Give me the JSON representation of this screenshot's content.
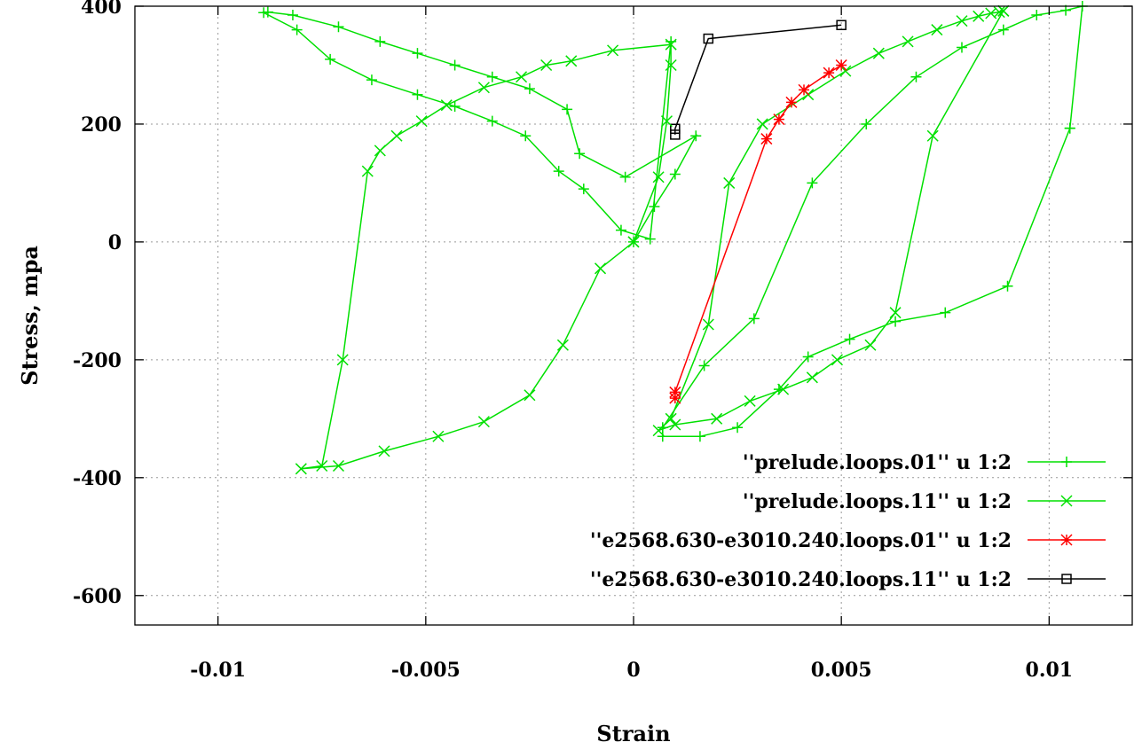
{
  "chart_data": {
    "type": "line",
    "xlabel": "Strain",
    "ylabel": "Stress, mpa",
    "xlim": [
      -0.012,
      0.012
    ],
    "ylim": [
      -650,
      400
    ],
    "xticks": [
      -0.01,
      -0.005,
      0,
      0.005,
      0.01
    ],
    "xtick_labels": [
      "-0.01",
      "-0.005",
      "0",
      "0.005",
      "0.01"
    ],
    "yticks": [
      -600,
      -400,
      -200,
      0,
      200,
      400
    ],
    "ytick_labels": [
      "-600",
      "-400",
      "-200",
      "0",
      "200",
      "400"
    ],
    "grid": true,
    "legend_position": "bottom-right",
    "series": [
      {
        "name": "''prelude.loops.01''  u 1:2",
        "color": "#00e000",
        "marker": "plus",
        "x": [
          0.0105,
          0.009,
          0.0075,
          0.0063,
          0.0052,
          0.0042,
          0.0035,
          0.0025,
          0.0016,
          0.0007,
          0.0007,
          0.0017,
          0.0029,
          0.0043,
          0.0056,
          0.0068,
          0.0079,
          0.0089,
          0.0097,
          0.0104,
          0.0108,
          0.0105
        ],
        "y": [
          193,
          -75,
          -120,
          -135,
          -165,
          -195,
          -250,
          -315,
          -330,
          -330,
          -315,
          -210,
          -130,
          100,
          200,
          280,
          330,
          360,
          385,
          393,
          400,
          193
        ]
      },
      {
        "name": "''prelude.loops.11''  u 1:2",
        "color": "#00e000",
        "marker": "x",
        "x": [
          0.0089,
          0.0072,
          0.0063,
          0.0057,
          0.0049,
          0.0043,
          0.0036,
          0.0028,
          0.002,
          0.001,
          0.0006,
          0.0009,
          0.0018,
          0.0023,
          0.0031,
          0.0042,
          0.0051,
          0.0059,
          0.0066,
          0.0073,
          0.0079,
          0.0083,
          0.0086,
          0.0088,
          0.0089
        ],
        "y": [
          392,
          180,
          -120,
          -175,
          -200,
          -230,
          -250,
          -270,
          -300,
          -310,
          -320,
          -300,
          -140,
          100,
          200,
          250,
          290,
          320,
          340,
          360,
          375,
          383,
          388,
          390,
          392
        ]
      },
      {
        "name": "''e2568.630-e3010.240.loops.01''  u 1:2",
        "color": "#ff0000",
        "marker": "star",
        "x": [
          0.001,
          0.001,
          0.0032,
          0.0035,
          0.0038,
          0.0041,
          0.0047,
          0.005
        ],
        "y": [
          -265,
          -255,
          175,
          208,
          237,
          258,
          287,
          300
        ]
      },
      {
        "name": "''e2568.630-e3010.240.loops.11''  u 1:2",
        "color": "#000000",
        "marker": "square",
        "x": [
          0.001,
          0.001,
          0.0018,
          0.005
        ],
        "y": [
          182,
          192,
          345,
          368
        ]
      },
      {
        "name": "",
        "color": "#00e000",
        "marker": "plus",
        "x": [
          0.0,
          0.0005,
          0.001,
          0.0015,
          -0.0002,
          -0.0013,
          -0.0016,
          -0.0025,
          -0.0034,
          -0.0043,
          -0.0052,
          -0.0061,
          -0.0071,
          -0.0082,
          -0.0088,
          -0.0089,
          -0.0081,
          -0.0073,
          -0.0063,
          -0.0052,
          -0.0043,
          -0.0034,
          -0.0026,
          -0.0018,
          -0.0012,
          -0.0003,
          0.0004,
          0.0009
        ],
        "y": [
          0,
          60,
          115,
          180,
          110,
          150,
          225,
          260,
          280,
          300,
          320,
          340,
          365,
          385,
          390,
          389,
          360,
          310,
          275,
          250,
          230,
          205,
          180,
          120,
          90,
          20,
          5,
          340
        ]
      },
      {
        "name": "",
        "color": "#00e000",
        "marker": "x",
        "x": [
          0.0,
          0.0006,
          0.0008,
          0.0009,
          0.0009,
          -0.0005,
          -0.0015,
          -0.0021,
          -0.0027,
          -0.0036,
          -0.0045,
          -0.0051,
          -0.0057,
          -0.0061,
          -0.0064,
          -0.007,
          -0.0075,
          -0.008,
          -0.0071,
          -0.006,
          -0.0047,
          -0.0036,
          -0.0025,
          -0.0017,
          -0.0008,
          0.0
        ],
        "y": [
          0,
          110,
          205,
          300,
          335,
          325,
          307,
          300,
          280,
          262,
          232,
          205,
          180,
          155,
          120,
          -200,
          -380,
          -385,
          -380,
          -355,
          -330,
          -305,
          -260,
          -175,
          -45,
          0
        ]
      }
    ]
  }
}
